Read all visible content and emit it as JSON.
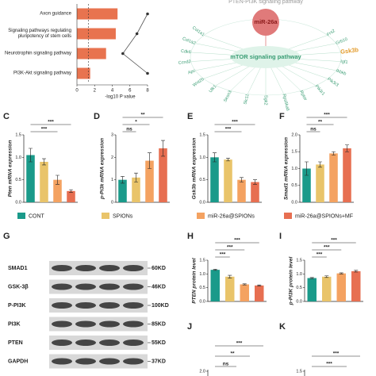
{
  "chart_data": [
    {
      "type": "barh",
      "categories": [
        "Axon guidance",
        "Signaling pathways regulating pluripotency of stem cells",
        "Neurotrophin signaling pathway",
        "PI3K-Akt signaling pathway"
      ],
      "values": [
        4.6,
        4.4,
        3.3,
        1.5
      ],
      "color": "#e8734f",
      "line_values": [
        8,
        6.8,
        5.2,
        8
      ],
      "line_color": "#555555",
      "threshold": 1.3,
      "xlabel": "-log10 P value",
      "xlim": [
        0,
        8
      ],
      "xticks": [
        0,
        2,
        4,
        6,
        8
      ]
    },
    {
      "type": "bar",
      "panel": "C",
      "ylabel": "Pten mRNA expression",
      "values": [
        1.05,
        0.9,
        0.5,
        0.25
      ],
      "errors": [
        0.15,
        0.07,
        0.1,
        0.03
      ],
      "ylim": [
        0,
        1.5
      ],
      "yticks": [
        {
          "value": 0,
          "label": "0.0"
        },
        0.5,
        {
          "value": 1,
          "label": "1.0"
        },
        1.5
      ],
      "significance": [
        "***",
        "***"
      ]
    },
    {
      "type": "bar",
      "panel": "D",
      "ylabel": "p-Pi3k mRNA expression",
      "values": [
        1.0,
        1.1,
        1.85,
        2.4
      ],
      "errors": [
        0.15,
        0.2,
        0.35,
        0.35
      ],
      "ylim": [
        0,
        3
      ],
      "yticks": [
        0,
        1,
        2,
        3
      ],
      "significance": [
        "**",
        "*",
        "ns"
      ]
    },
    {
      "type": "bar",
      "panel": "E",
      "ylabel": "Gsk3b mRNA expression",
      "values": [
        1.0,
        0.95,
        0.5,
        0.45
      ],
      "errors": [
        0.1,
        0.03,
        0.05,
        0.05
      ],
      "ylim": [
        0,
        1.5
      ],
      "yticks": [
        {
          "value": 0,
          "label": "0.0"
        },
        0.5,
        {
          "value": 1,
          "label": "1.0"
        },
        1.5
      ],
      "significance": [
        "***",
        "***"
      ]
    },
    {
      "type": "bar",
      "panel": "F",
      "ylabel": "Smad1 mRNA expression",
      "values": [
        1.0,
        1.12,
        1.45,
        1.6
      ],
      "errors": [
        0.2,
        0.08,
        0.05,
        0.1
      ],
      "ylim": [
        0,
        2
      ],
      "yticks": [
        {
          "value": 0,
          "label": "0.0"
        },
        0.5,
        {
          "value": 1,
          "label": "1.0"
        },
        1.5,
        {
          "value": 2,
          "label": "2.0"
        }
      ],
      "significance": [
        "***",
        "**",
        "ns"
      ]
    },
    {
      "type": "bar",
      "panel": "H",
      "ylabel": "PTEN protein level",
      "values": [
        1.15,
        0.9,
        0.62,
        0.58
      ],
      "errors": [
        0.02,
        0.05,
        0.02,
        0.02
      ],
      "ylim": [
        0,
        1.5
      ],
      "yticks": [
        {
          "value": 0,
          "label": "0.0"
        },
        0.5,
        {
          "value": 1,
          "label": "1.0"
        },
        1.5
      ],
      "significance": [
        "***",
        "***",
        "***"
      ]
    },
    {
      "type": "bar",
      "panel": "I",
      "ylabel": "p-PI3K protein level",
      "values": [
        0.85,
        0.9,
        1.02,
        1.1
      ],
      "errors": [
        0.02,
        0.03,
        0.02,
        0.03
      ],
      "ylim": [
        0,
        1.5
      ],
      "yticks": [
        {
          "value": 0,
          "label": "0.0"
        },
        0.5,
        {
          "value": 1,
          "label": "1.0"
        },
        1.5
      ],
      "significance": [
        "***",
        "***",
        "***"
      ]
    }
  ],
  "groups": [
    {
      "name": "CONT",
      "color": "#1a9a8a"
    },
    {
      "name": "SPIONs",
      "color": "#e9c46a"
    },
    {
      "name": "miR-26a@SPIONs",
      "color": "#f4a261"
    },
    {
      "name": "miR-26a@SPIONs+MF",
      "color": "#e76f51"
    }
  ],
  "network": {
    "top_pathway": "PTEN-PI3K signaling pathway",
    "center": "miR-26a",
    "pathway": "mTOR signaling pathway",
    "genes": [
      "Col1a1",
      "Col1a2",
      "Cdk6",
      "Ccnd2",
      "Apc",
      "Wnt2b",
      "Ulk1",
      "Sesn3",
      "Slc11",
      "Sgk2",
      "Rps6ka6",
      "Rptor",
      "Pik3r1",
      "Pik3r3",
      "Ikbkb",
      "Igf1",
      "Gsk3b",
      "Grb10",
      "Frs2"
    ],
    "highlight": "Gsk3b"
  },
  "blot": {
    "panel": "G",
    "proteins": [
      "SMAD1",
      "GSK-3β",
      "P-PI3K",
      "PI3K",
      "PTEN",
      "GAPDH"
    ],
    "sizes": [
      "60KD",
      "46KD",
      "100KD",
      "85KD",
      "55KD",
      "37KD"
    ]
  },
  "partial_panels": [
    {
      "panel": "J",
      "ytick": {
        "value": 2,
        "label": "2.0"
      },
      "significance": [
        "***",
        "**",
        "ns"
      ]
    },
    {
      "panel": "K",
      "ytick": {
        "value": 1.5,
        "label": "1.5"
      },
      "significance": [
        "***",
        "***"
      ]
    }
  ]
}
